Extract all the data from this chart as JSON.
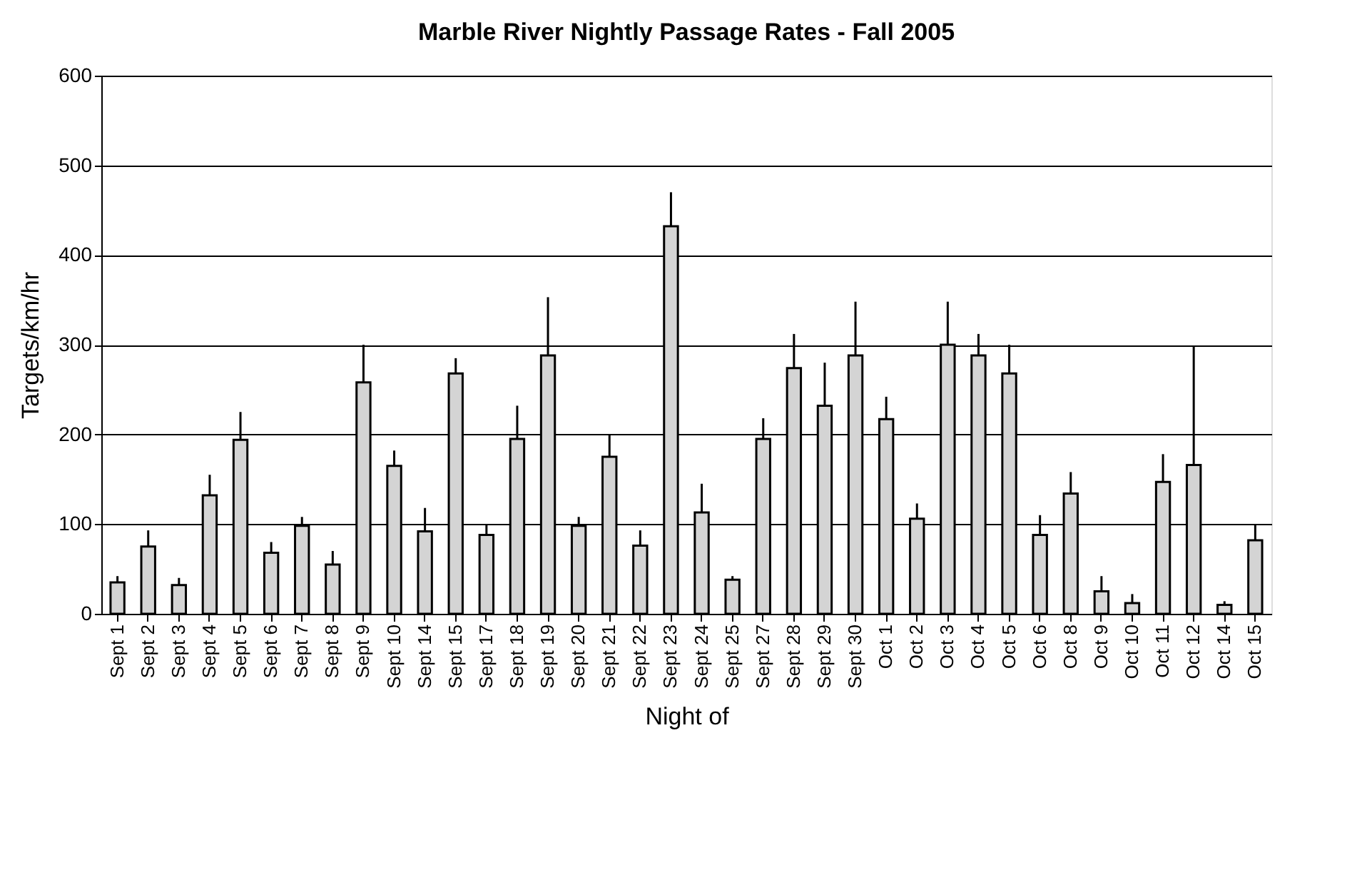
{
  "chart_data": {
    "type": "bar",
    "title": "Marble River Nightly Passage Rates - Fall 2005",
    "xlabel": "Night of",
    "ylabel": "Targets/km/hr",
    "categories": [
      "Sept 1",
      "Sept 2",
      "Sept 3",
      "Sept 4",
      "Sept 5",
      "Sept 6",
      "Sept 7",
      "Sept 8",
      "Sept 9",
      "Sept 10",
      "Sept 14",
      "Sept 15",
      "Sept 17",
      "Sept 18",
      "Sept 19",
      "Sept 20",
      "Sept 21",
      "Sept 22",
      "Sept 23",
      "Sept 24",
      "Sept 25",
      "Sept 27",
      "Sept 28",
      "Sept 29",
      "Sept 30",
      "Oct 1",
      "Oct 2",
      "Oct 3",
      "Oct 4",
      "Oct 5",
      "Oct 6",
      "Oct 8",
      "Oct 9",
      "Oct 10",
      "Oct 11",
      "Oct 12",
      "Oct 14",
      "Oct 15"
    ],
    "values": [
      35,
      75,
      32,
      132,
      194,
      68,
      98,
      55,
      258,
      165,
      92,
      268,
      88,
      195,
      288,
      98,
      175,
      76,
      432,
      113,
      38,
      195,
      274,
      232,
      288,
      217,
      106,
      300,
      288,
      268,
      88,
      134,
      25,
      12,
      147,
      166,
      10,
      82
    ],
    "errors": [
      [
        35,
        42
      ],
      [
        75,
        93
      ],
      [
        32,
        40
      ],
      [
        132,
        155
      ],
      [
        194,
        225
      ],
      [
        68,
        80
      ],
      [
        98,
        108
      ],
      [
        55,
        70
      ],
      [
        258,
        300
      ],
      [
        165,
        182
      ],
      [
        92,
        118
      ],
      [
        268,
        285
      ],
      [
        88,
        100
      ],
      [
        195,
        232
      ],
      [
        288,
        353
      ],
      [
        98,
        108
      ],
      [
        175,
        200
      ],
      [
        76,
        93
      ],
      [
        432,
        470
      ],
      [
        113,
        145
      ],
      [
        38,
        42
      ],
      [
        195,
        218
      ],
      [
        274,
        312
      ],
      [
        232,
        280
      ],
      [
        288,
        348
      ],
      [
        217,
        242
      ],
      [
        106,
        123
      ],
      [
        300,
        348
      ],
      [
        288,
        312
      ],
      [
        268,
        300
      ],
      [
        88,
        110
      ],
      [
        134,
        158
      ],
      [
        25,
        42
      ],
      [
        12,
        22
      ],
      [
        147,
        178
      ],
      [
        166,
        298
      ],
      [
        10,
        14
      ],
      [
        82,
        100
      ]
    ],
    "color": "#d4d4d4",
    "ylim": [
      0,
      600
    ],
    "yticks": [
      0,
      100,
      200,
      300,
      400,
      500,
      600
    ],
    "grid": "y"
  }
}
